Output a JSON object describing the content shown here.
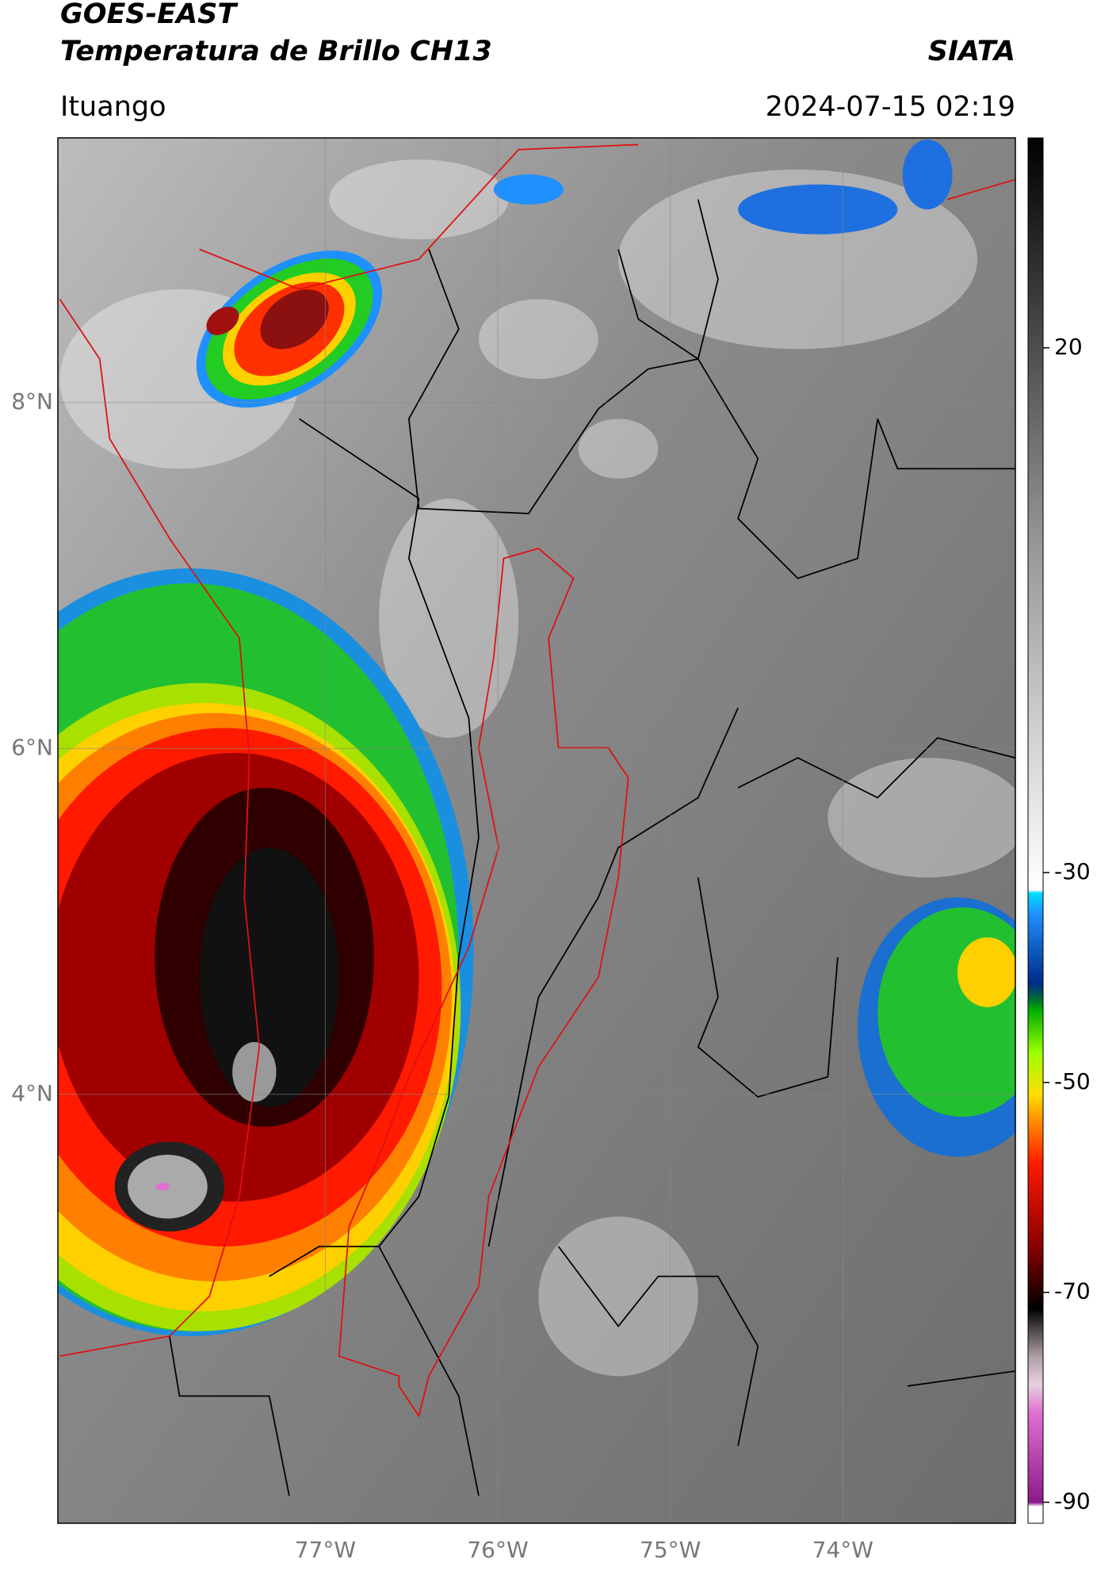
{
  "header": {
    "title": "GOES-EAST",
    "subtitle": "Temperatura de Brillo CH13",
    "agency": "SIATA",
    "location": "Ituango",
    "datetime": "2024-07-15 02:19"
  },
  "map": {
    "xlim": [
      -78.55,
      -73.0
    ],
    "ylim": [
      1.52,
      9.53
    ],
    "xticks": [
      {
        "value": -77,
        "label": "77°W"
      },
      {
        "value": -76,
        "label": "76°W"
      },
      {
        "value": -75,
        "label": "75°W"
      },
      {
        "value": -74,
        "label": "74°W"
      }
    ],
    "yticks": [
      {
        "value": 8,
        "label": "8°N"
      },
      {
        "value": 6,
        "label": "6°N"
      },
      {
        "value": 4,
        "label": "4°N"
      }
    ]
  },
  "colorbar": {
    "lim": [
      -92,
      40
    ],
    "ticks": [
      20,
      -30,
      -50,
      -70,
      -90
    ]
  }
}
